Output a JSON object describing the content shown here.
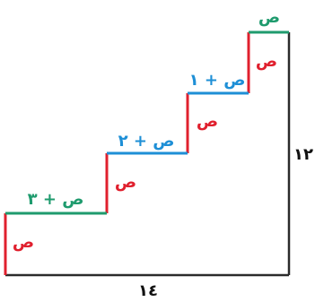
{
  "colors": {
    "riser": "#e0202e",
    "tread_top": "#1f9b6e",
    "tread_blue": "#1e8fd6",
    "frame": "#2b2b2b",
    "text_dark": "#111111"
  },
  "labels": {
    "top_tread": "ص",
    "tread_3": "ص + ١",
    "tread_2": "ص + ٢",
    "tread_1": "ص + ٣",
    "riser_4": "ص",
    "riser_3": "ص",
    "riser_2": "ص",
    "riser_1": "ص",
    "height": "١٢",
    "base": "١٤"
  }
}
